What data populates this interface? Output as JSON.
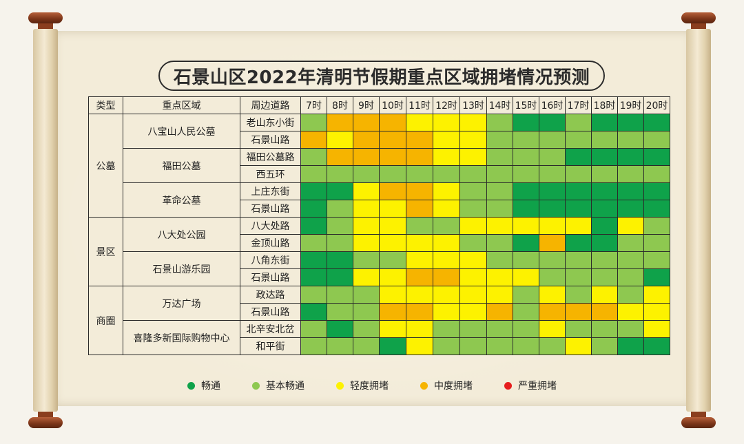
{
  "title": "石景山区2022年清明节假期重点区域拥堵情况预测",
  "headers": [
    "类型",
    "重点区域",
    "周边道路",
    "7时",
    "8时",
    "9时",
    "10时",
    "11时",
    "12时",
    "13时",
    "14时",
    "15时",
    "16时",
    "17时",
    "18时",
    "19时",
    "20时"
  ],
  "colors": {
    "G": "#0fa24a",
    "L": "#8ec850",
    "Y": "#fdf200",
    "O": "#f6b400",
    "R": "#e61e1e"
  },
  "types": [
    {
      "label": "公墓",
      "rows": 6
    },
    {
      "label": "景区",
      "rows": 4
    },
    {
      "label": "商圈",
      "rows": 4
    }
  ],
  "areas": [
    {
      "label": "八宝山人民公墓",
      "rows": 2
    },
    {
      "label": "福田公墓",
      "rows": 2
    },
    {
      "label": "革命公墓",
      "rows": 2
    },
    {
      "label": "八大处公园",
      "rows": 2
    },
    {
      "label": "石景山游乐园",
      "rows": 2
    },
    {
      "label": "万达广场",
      "rows": 2
    },
    {
      "label": "喜隆多新国际购物中心",
      "rows": 2
    }
  ],
  "rows": [
    {
      "road": "老山东小街",
      "levels": [
        "L",
        "O",
        "O",
        "O",
        "Y",
        "Y",
        "Y",
        "L",
        "G",
        "G",
        "L",
        "G",
        "G",
        "G"
      ]
    },
    {
      "road": "石景山路",
      "levels": [
        "O",
        "Y",
        "O",
        "O",
        "O",
        "Y",
        "Y",
        "L",
        "L",
        "L",
        "L",
        "L",
        "L",
        "L"
      ]
    },
    {
      "road": "福田公墓路",
      "levels": [
        "L",
        "O",
        "O",
        "O",
        "O",
        "Y",
        "Y",
        "L",
        "L",
        "L",
        "G",
        "G",
        "G",
        "G"
      ]
    },
    {
      "road": "西五环",
      "levels": [
        "L",
        "L",
        "L",
        "L",
        "L",
        "L",
        "L",
        "L",
        "L",
        "L",
        "L",
        "L",
        "L",
        "L"
      ]
    },
    {
      "road": "上庄东街",
      "levels": [
        "G",
        "G",
        "Y",
        "O",
        "O",
        "Y",
        "L",
        "L",
        "G",
        "G",
        "G",
        "G",
        "G",
        "G"
      ]
    },
    {
      "road": "石景山路",
      "levels": [
        "G",
        "L",
        "Y",
        "Y",
        "O",
        "Y",
        "L",
        "L",
        "G",
        "G",
        "G",
        "G",
        "G",
        "G"
      ]
    },
    {
      "road": "八大处路",
      "levels": [
        "G",
        "L",
        "Y",
        "Y",
        "L",
        "L",
        "Y",
        "Y",
        "Y",
        "Y",
        "Y",
        "G",
        "Y",
        "L"
      ]
    },
    {
      "road": "金顶山路",
      "levels": [
        "L",
        "L",
        "Y",
        "Y",
        "Y",
        "Y",
        "L",
        "L",
        "G",
        "O",
        "G",
        "G",
        "L",
        "L"
      ]
    },
    {
      "road": "八角东街",
      "levels": [
        "G",
        "G",
        "L",
        "L",
        "Y",
        "Y",
        "Y",
        "L",
        "L",
        "L",
        "L",
        "L",
        "L",
        "L"
      ]
    },
    {
      "road": "石景山路",
      "levels": [
        "G",
        "G",
        "Y",
        "Y",
        "O",
        "O",
        "Y",
        "Y",
        "Y",
        "L",
        "L",
        "L",
        "L",
        "G"
      ]
    },
    {
      "road": "政达路",
      "levels": [
        "L",
        "L",
        "L",
        "Y",
        "Y",
        "Y",
        "Y",
        "Y",
        "L",
        "Y",
        "L",
        "Y",
        "L",
        "Y"
      ]
    },
    {
      "road": "石景山路",
      "levels": [
        "G",
        "L",
        "L",
        "O",
        "O",
        "Y",
        "Y",
        "O",
        "L",
        "O",
        "O",
        "O",
        "Y",
        "Y"
      ]
    },
    {
      "road": "北辛安北岔",
      "levels": [
        "L",
        "G",
        "L",
        "Y",
        "Y",
        "L",
        "L",
        "L",
        "L",
        "Y",
        "L",
        "L",
        "L",
        "Y"
      ]
    },
    {
      "road": "和平街",
      "levels": [
        "L",
        "L",
        "L",
        "G",
        "Y",
        "L",
        "L",
        "L",
        "L",
        "L",
        "Y",
        "L",
        "G",
        "G"
      ]
    }
  ],
  "legend": [
    {
      "label": "畅通",
      "key": "G"
    },
    {
      "label": "基本畅通",
      "key": "L"
    },
    {
      "label": "轻度拥堵",
      "key": "Y"
    },
    {
      "label": "中度拥堵",
      "key": "O"
    },
    {
      "label": "严重拥堵",
      "key": "R"
    }
  ]
}
